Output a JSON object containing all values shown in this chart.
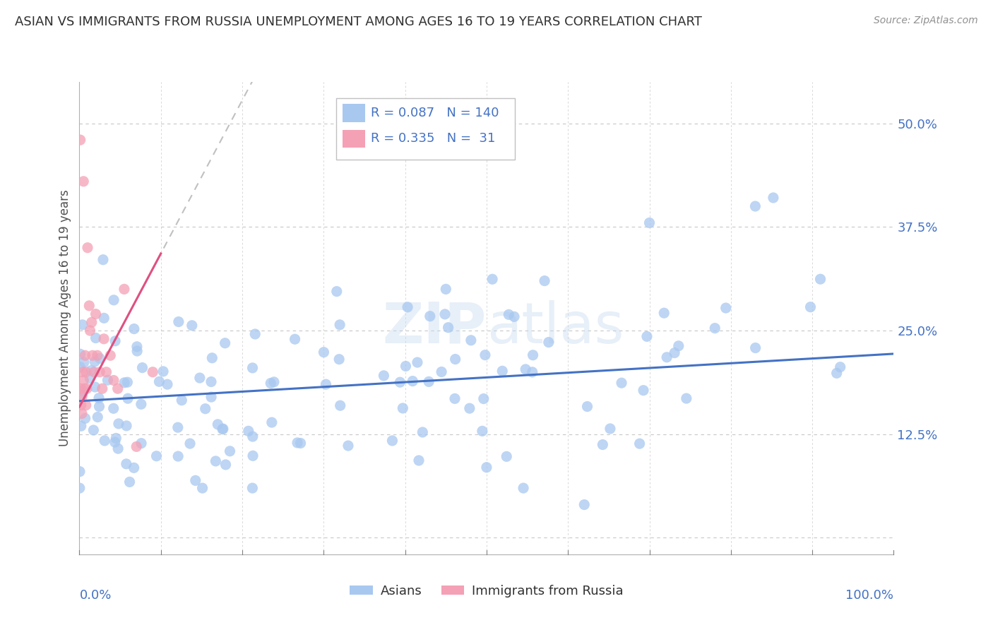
{
  "title": "ASIAN VS IMMIGRANTS FROM RUSSIA UNEMPLOYMENT AMONG AGES 16 TO 19 YEARS CORRELATION CHART",
  "source": "Source: ZipAtlas.com",
  "ylabel": "Unemployment Among Ages 16 to 19 years",
  "xlim": [
    0,
    1.0
  ],
  "ylim": [
    -0.02,
    0.55
  ],
  "yticks": [
    0.0,
    0.125,
    0.25,
    0.375,
    0.5
  ],
  "ytick_labels": [
    "",
    "12.5%",
    "25.0%",
    "37.5%",
    "50.0%"
  ],
  "watermark": "ZIPatlas",
  "legend_blue_R": "0.087",
  "legend_blue_N": "140",
  "legend_pink_R": "0.335",
  "legend_pink_N": "31",
  "blue_color": "#a8c8f0",
  "pink_color": "#f4a0b5",
  "line_blue": "#4472c4",
  "line_pink": "#e05080",
  "line_dashed": "#c0c0c0",
  "R_N_color": "#4472c4",
  "background_color": "#ffffff",
  "grid_color": "#c8c8c8",
  "title_color": "#303030",
  "source_color": "#909090",
  "asian_slope": 0.057,
  "asian_intercept": 0.165,
  "russia_slope": 1.85,
  "russia_intercept": 0.158
}
